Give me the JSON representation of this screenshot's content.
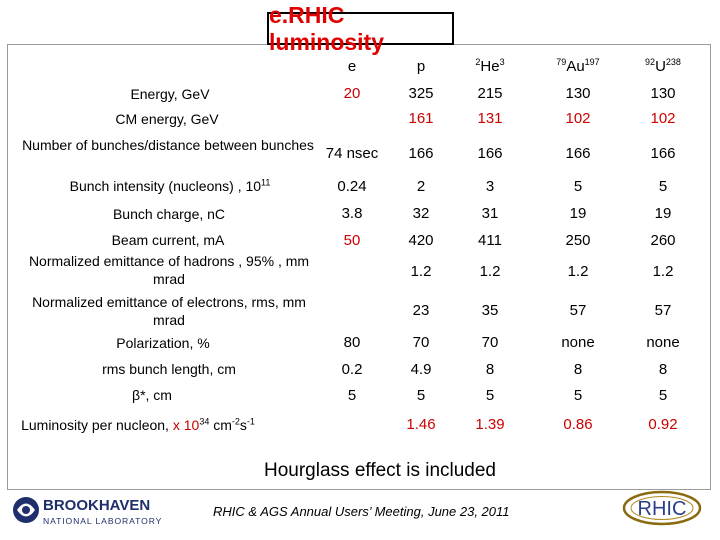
{
  "title": "e.RHIC luminosity",
  "columns": [
    {
      "base": "e"
    },
    {
      "base": "p"
    },
    {
      "pre": "2",
      "base": "He",
      "post": "3"
    },
    {
      "pre": "79",
      "base": "Au",
      "post": "197"
    },
    {
      "pre": "92",
      "base": "U",
      "post": "238"
    }
  ],
  "rows": [
    {
      "label": "Energy, GeV",
      "values": [
        "20",
        "325",
        "215",
        "130",
        "130"
      ]
    },
    {
      "label": "CM energy, GeV",
      "values": [
        "",
        "161",
        "131",
        "102",
        "102"
      ]
    },
    {
      "label": "Number of bunches/distance between bunches",
      "values": [
        "74 nsec",
        "166",
        "166",
        "166",
        "166"
      ]
    },
    {
      "label": "Bunch intensity (nucleons) , 10",
      "label_sup": "11",
      "values": [
        "0.24",
        "2",
        "3",
        "5",
        "5"
      ]
    },
    {
      "label": "Bunch charge, nC",
      "values": [
        "3.8",
        "32",
        "31",
        "19",
        "19"
      ]
    },
    {
      "label": "Beam current, mA",
      "values": [
        "50",
        "420",
        "411",
        "250",
        "260"
      ]
    },
    {
      "label": "Normalized emittance of hadrons , 95% , mm mrad",
      "values": [
        "",
        "1.2",
        "1.2",
        "1.2",
        "1.2"
      ]
    },
    {
      "label": "Normalized emittance of electrons, rms, mm mrad",
      "values": [
        "",
        "23",
        "35",
        "57",
        "57"
      ]
    },
    {
      "label": "Polarization, %",
      "values": [
        "80",
        "70",
        "70",
        "none",
        "none"
      ]
    },
    {
      "label": "rms bunch length, cm",
      "values": [
        "0.2",
        "4.9",
        "8",
        "8",
        "8"
      ]
    },
    {
      "label": "β*, cm",
      "values": [
        "5",
        "5",
        "5",
        "5",
        "5"
      ]
    },
    {
      "label": "Luminosity per nucleon, x 10",
      "values": [
        "",
        "1.46",
        "1.39",
        "0.86",
        "0.92"
      ]
    }
  ],
  "luminosity_label": {
    "prefix": "Luminosity per nucleon, ",
    "x": "x 10",
    "exp": "34",
    "unit1": " cm",
    "unit1_exp": "-2",
    "unit2": "s",
    "unit2_exp": "-1"
  },
  "note": "Hourglass effect is included",
  "footer": "RHIC & AGS Annual Users’ Meeting,   June 23, 2011",
  "logos": {
    "bnl_name": "BROOKHAVEN",
    "bnl_sub": "NATIONAL LABORATORY",
    "rhic_text": "RHIC"
  },
  "colors": {
    "title": "#e00000",
    "red_values": "#cc0000",
    "bnl_blue": "#1f2f6b",
    "rhic_blue": "#2b3d8f"
  }
}
